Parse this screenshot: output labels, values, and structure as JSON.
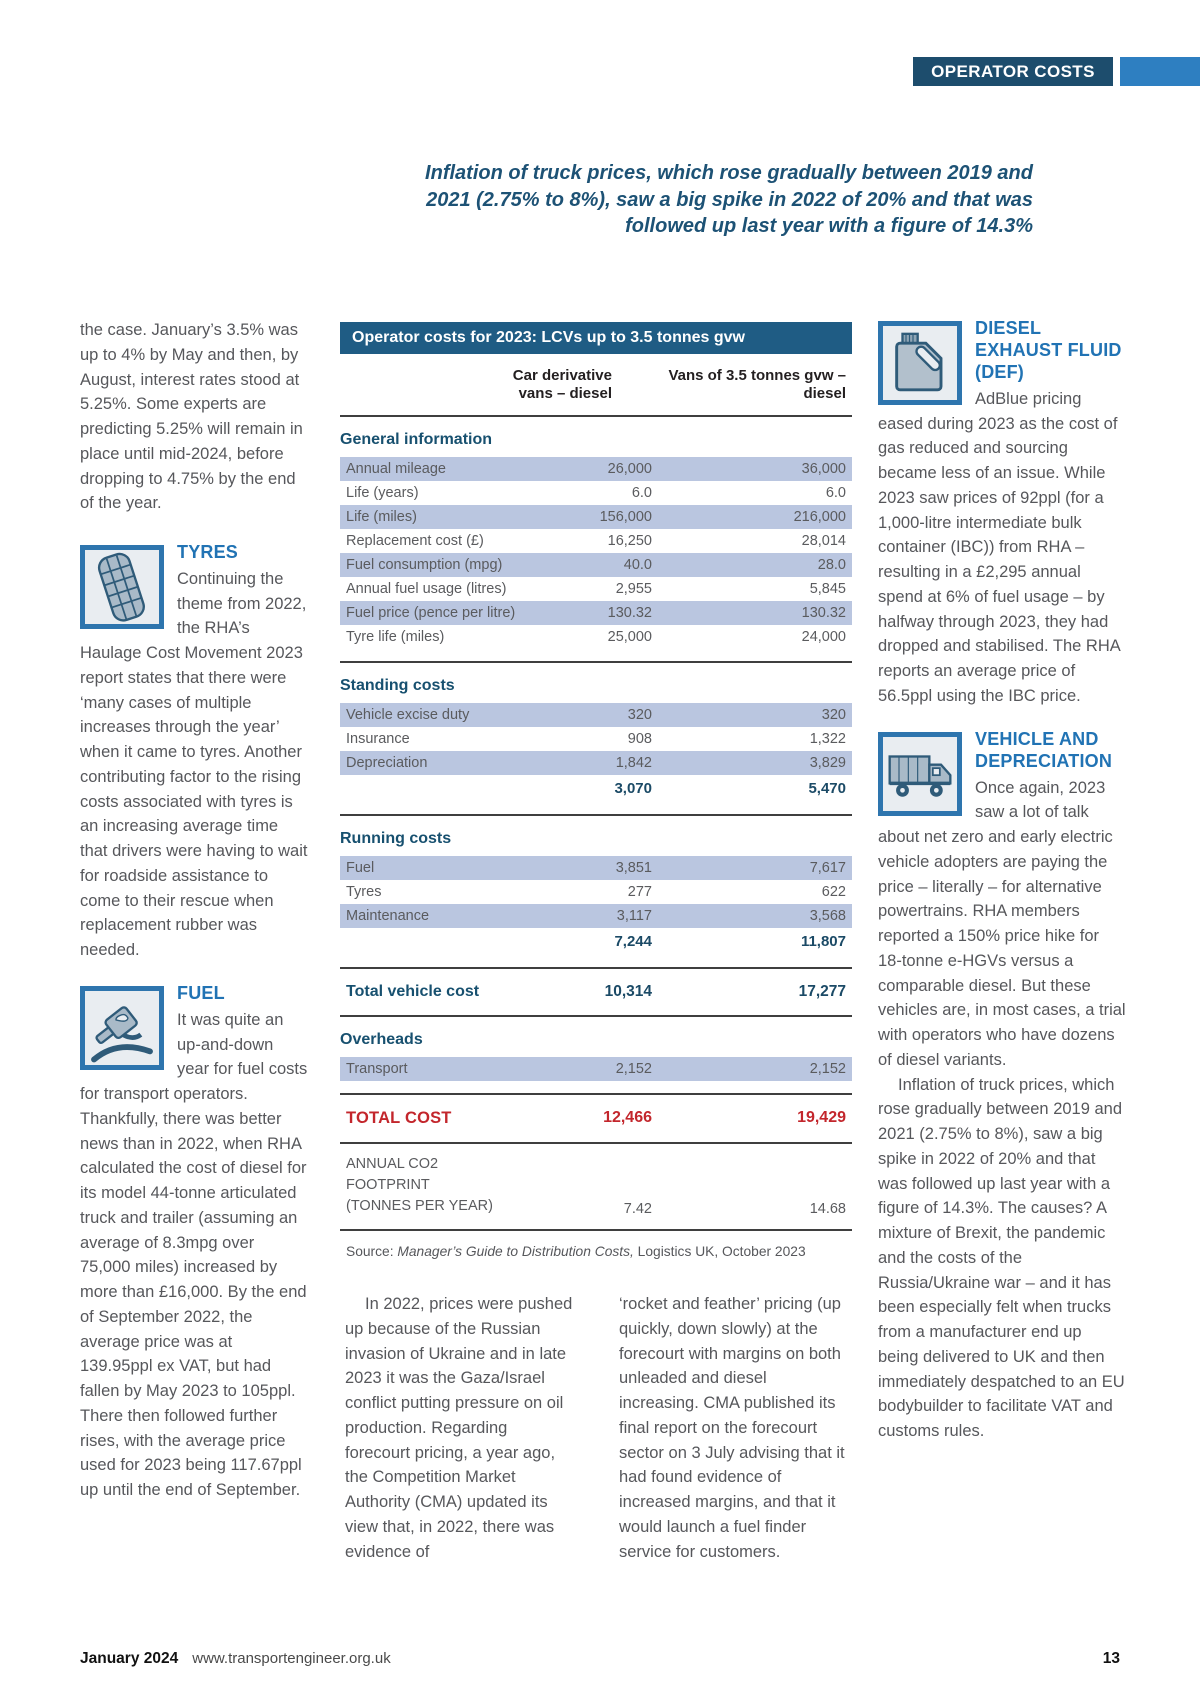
{
  "header": {
    "tag": "OPERATOR COSTS"
  },
  "pull_quote": {
    "lines": [
      "Inflation of truck prices, which rose gradually between 2019 and",
      "2021 (2.75% to 8%), saw a big spike in 2022 of 20% and that was",
      "followed up last year with a figure of 14.3%"
    ]
  },
  "left_column": {
    "intro": "the case. January’s 3.5% was up to 4% by May and then, by August, interest rates stood at 5.25%. Some experts are predicting 5.25% will remain in place until mid-2024, before dropping to 4.75% by the end of the year.",
    "tyres": {
      "heading": "TYRES",
      "icon": "tyre-icon",
      "text": "Continuing the theme from 2022, the RHA’s Haulage Cost Movement 2023 report states that there were ‘many cases of multiple increases through the year’ when it came to tyres. Another contributing factor to the rising costs associated with tyres is an increasing average time that drivers were having to wait for roadside assistance to come to their rescue when replacement rubber was needed."
    },
    "fuel": {
      "heading": "FUEL",
      "icon": "fuel-pump-icon",
      "text": "It was quite an up-and-down year for fuel costs for transport operators. Thankfully, there was better news than in 2022, when RHA calculated the cost of diesel for its model 44-tonne articulated truck and trailer (assuming an average of 8.3mpg over 75,000 miles) increased by more than £16,000. By the end of September 2022, the average price was at 139.95ppl ex VAT, but had fallen by May 2023 to 105ppl. There then followed further rises, with the average price used for 2023 being 117.67ppl up until the end of September."
    }
  },
  "table": {
    "title": "Operator costs for 2023: LCVs up to 3.5 tonnes gvw",
    "col_headers": [
      "Car derivative vans – diesel",
      "Vans of 3.5 tonnes gvw – diesel"
    ],
    "sections": [
      {
        "name": "General information",
        "rows": [
          {
            "label": "Annual mileage",
            "v1": "26,000",
            "v2": "36,000"
          },
          {
            "label": "Life (years)",
            "v1": "6.0",
            "v2": "6.0"
          },
          {
            "label": "Life (miles)",
            "v1": "156,000",
            "v2": "216,000"
          },
          {
            "label": "Replacement cost (£)",
            "v1": "16,250",
            "v2": "28,014"
          },
          {
            "label": "Fuel consumption (mpg)",
            "v1": "40.0",
            "v2": "28.0"
          },
          {
            "label": "Annual fuel usage (litres)",
            "v1": "2,955",
            "v2": "5,845"
          },
          {
            "label": "Fuel price (pence per litre)",
            "v1": "130.32",
            "v2": "130.32"
          },
          {
            "label": "Tyre life (miles)",
            "v1": "25,000",
            "v2": "24,000"
          }
        ]
      },
      {
        "name": "Standing costs",
        "rows": [
          {
            "label": "Vehicle excise duty",
            "v1": "320",
            "v2": "320"
          },
          {
            "label": "Insurance",
            "v1": "908",
            "v2": "1,322"
          },
          {
            "label": "Depreciation",
            "v1": "1,842",
            "v2": "3,829"
          }
        ],
        "subtotal": {
          "v1": "3,070",
          "v2": "5,470"
        }
      },
      {
        "name": "Running costs",
        "rows": [
          {
            "label": "Fuel",
            "v1": "3,851",
            "v2": "7,617"
          },
          {
            "label": "Tyres",
            "v1": "277",
            "v2": "622"
          },
          {
            "label": "Maintenance",
            "v1": "3,117",
            "v2": "3,568"
          }
        ],
        "subtotal": {
          "v1": "7,244",
          "v2": "11,807"
        }
      }
    ],
    "total_vehicle_cost": {
      "label": "Total vehicle cost",
      "v1": "10,314",
      "v2": "17,277"
    },
    "overheads": {
      "name": "Overheads",
      "rows": [
        {
          "label": "Transport",
          "v1": "2,152",
          "v2": "2,152"
        }
      ]
    },
    "total_cost": {
      "label": "TOTAL COST",
      "v1": "12,466",
      "v2": "19,429"
    },
    "co2": {
      "label_line1": "ANNUAL CO2 FOOTPRINT",
      "label_line2": "(TONNES PER YEAR)",
      "v1": "7.42",
      "v2": "14.68"
    },
    "source_prefix": "Source: ",
    "source_title": "Manager’s Guide to Distribution Costs,",
    "source_suffix": " Logistics UK, October 2023"
  },
  "bottom_columns": {
    "col1": "In 2022, prices were pushed up because of the Russian invasion of Ukraine and in late 2023 it was the Gaza/Israel conflict putting pressure on oil production. Regarding forecourt pricing, a year ago, the Competition Market Authority (CMA) updated its view that, in 2022, there was evidence of",
    "col2": "‘rocket and feather’ pricing (up quickly, down slowly) at the forecourt with margins on both unleaded and diesel increasing. CMA published its final report on the forecourt sector on 3 July advising that it had found evidence of increased margins, and that it would launch a fuel finder service for customers."
  },
  "right_column": {
    "def": {
      "heading": "DIESEL EXHAUST FLUID (DEF)",
      "icon": "def-container-icon",
      "text": "AdBlue pricing eased during 2023 as the cost of gas reduced and sourcing became less of an issue. While 2023 saw prices of 92ppl (for a 1,000-litre intermediate bulk container (IBC)) from RHA – resulting in a £2,295 annual spend at 6% of fuel usage – by halfway through 2023, they had dropped and stabilised. The RHA reports an average price of 56.5ppl using the IBC price."
    },
    "vehicle": {
      "heading": "VEHICLE AND DEPRECIATION",
      "icon": "truck-icon",
      "text1": "Once again, 2023 saw a lot of talk about net zero and early electric vehicle adopters are paying the price – literally – for alternative powertrains. RHA members reported a 150% price hike for 18-tonne e-HGVs versus a comparable diesel. But these vehicles are, in most cases, a trial with operators who have dozens of diesel variants.",
      "text2": "Inflation of truck prices, which rose gradually between 2019 and 2021 (2.75% to 8%), saw a big spike in 2022 of 20% and that was followed up last year with a figure of 14.3%. The causes? A mixture of Brexit, the pandemic and the costs of the Russia/Ukraine war – and it has been especially felt when trucks from a manufacturer end up being delivered to UK and then immediately despatched to an EU bodybuilder to facilitate VAT and customs rules."
    }
  },
  "footer": {
    "issue": "January 2024",
    "url": "www.transportengineer.org.uk",
    "page_number": "13"
  },
  "colors": {
    "navy_tag": "#1d4d6d",
    "accent_blue": "#2e7fc1",
    "table_bar": "#1f5c84",
    "row_shade": "#bac6e0",
    "section_heading_blue": "#2173b4",
    "table_section_navy": "#17506f",
    "total_red": "#c3262c",
    "body_gray": "#56575b"
  }
}
